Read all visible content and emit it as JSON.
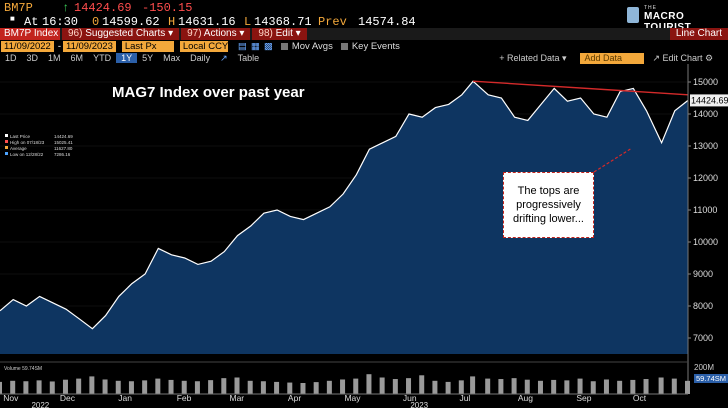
{
  "quote": {
    "ticker": "BM7P",
    "last": "14424.69",
    "change": "-150.15",
    "at_label": "At",
    "time": "16:30",
    "open_prefix": "0",
    "open": "14599.62",
    "high_prefix": "H",
    "high": "14631.16",
    "low_prefix": "L",
    "low": "14368.71",
    "prev_label": "Prev",
    "prev": "14574.84"
  },
  "logo": {
    "line1": "THE",
    "line2": "MACRO TOURIST"
  },
  "menu": {
    "ticker_label": "BM7P Index",
    "items": [
      {
        "num": "96)",
        "label": "Suggested Charts",
        "arrow": "▾"
      },
      {
        "num": "97)",
        "label": "Actions",
        "arrow": "▾"
      },
      {
        "num": "98)",
        "label": "Edit",
        "arrow": "▾"
      }
    ],
    "right": "Line Chart"
  },
  "controls": {
    "start_date": "11/09/2022",
    "dash": "-",
    "end_date": "11/09/2023",
    "field": "Last Px",
    "ccy": "Local CCY",
    "mov_avgs": "Mov Avgs",
    "key_events": "Key Events"
  },
  "periods": [
    "1D",
    "3D",
    "1M",
    "6M",
    "YTD",
    "1Y",
    "5Y",
    "Max"
  ],
  "selected_period": "1Y",
  "freq": "Daily",
  "table_label": "Table",
  "related_data": "+ Related Data ▾",
  "add_data_placeholder": "Add Data",
  "edit_chart": "↗ Edit Chart ⚙",
  "legend": {
    "rows": [
      {
        "label": "Last Price",
        "value": "14424.69",
        "color": "#ffffff"
      },
      {
        "label": "High on 07/18/23",
        "value": "15025.41",
        "color": "#ff4d4d"
      },
      {
        "label": "Average",
        "value": "11627.80",
        "color": "#f3a83b"
      },
      {
        "label": "Low on 12/28/22",
        "value": "7286.16",
        "color": "#4da3ff"
      }
    ]
  },
  "volume": {
    "label": "Volume",
    "value": "59.74SM",
    "scale_top": "200M",
    "scale_current": "59.74SM"
  },
  "annotation": {
    "title": "MAG7 Index over past year",
    "callout": "The tops are progressively drifting lower..."
  },
  "colors": {
    "area": "#0e3561",
    "bg": "#000000",
    "line": "#ffffff",
    "trend": "#d42a2a",
    "accent": "#f3a83b"
  },
  "chart_data": {
    "type": "area",
    "ylim": [
      6500,
      15500
    ],
    "yticks": [
      7000,
      8000,
      9000,
      10000,
      11000,
      12000,
      13000,
      14000,
      15000
    ],
    "ytick_labels": [
      "7000",
      "8000",
      "9000",
      "10000",
      "11000",
      "12000",
      "13000",
      "14000",
      "15000"
    ],
    "xtick_labels": [
      "Nov",
      "Dec",
      "Jan",
      "Feb",
      "Mar",
      "Apr",
      "May",
      "Jun",
      "Jul",
      "Aug",
      "Sep",
      "Oct"
    ],
    "year_labels": [
      "2022",
      "2023"
    ],
    "last_value_label": "14424.69",
    "x": [
      "2022-11-09",
      "2022-11-16",
      "2022-11-23",
      "2022-11-30",
      "2022-12-07",
      "2022-12-14",
      "2022-12-21",
      "2022-12-28",
      "2023-01-04",
      "2023-01-11",
      "2023-01-18",
      "2023-01-25",
      "2023-02-01",
      "2023-02-08",
      "2023-02-15",
      "2023-02-22",
      "2023-03-01",
      "2023-03-08",
      "2023-03-15",
      "2023-03-22",
      "2023-03-29",
      "2023-04-05",
      "2023-04-12",
      "2023-04-19",
      "2023-04-26",
      "2023-05-03",
      "2023-05-10",
      "2023-05-17",
      "2023-05-24",
      "2023-05-31",
      "2023-06-07",
      "2023-06-14",
      "2023-06-21",
      "2023-06-28",
      "2023-07-05",
      "2023-07-12",
      "2023-07-18",
      "2023-07-26",
      "2023-08-02",
      "2023-08-09",
      "2023-08-16",
      "2023-08-23",
      "2023-08-30",
      "2023-09-06",
      "2023-09-13",
      "2023-09-20",
      "2023-09-27",
      "2023-10-04",
      "2023-10-11",
      "2023-10-18",
      "2023-10-26",
      "2023-11-02",
      "2023-11-09"
    ],
    "values": [
      7850,
      8200,
      8000,
      8300,
      8100,
      7900,
      7600,
      7290,
      7700,
      8300,
      8700,
      9000,
      9800,
      9600,
      9500,
      9300,
      9400,
      9700,
      10200,
      10500,
      10900,
      11000,
      10800,
      10700,
      10900,
      11100,
      11500,
      12100,
      12900,
      13100,
      13300,
      14000,
      13900,
      14200,
      14300,
      14600,
      15025,
      14600,
      14500,
      13900,
      13800,
      14300,
      14800,
      14400,
      14500,
      14000,
      13900,
      14700,
      14800,
      14100,
      13100,
      14100,
      14424.69
    ],
    "trendline": {
      "x": [
        "2023-07-18",
        "2023-11-09"
      ],
      "y": [
        15025,
        14600
      ]
    },
    "volume_values": [
      55,
      60,
      58,
      62,
      57,
      65,
      70,
      80,
      66,
      60,
      58,
      62,
      70,
      64,
      60,
      58,
      63,
      72,
      75,
      60,
      58,
      55,
      52,
      50,
      54,
      60,
      66,
      70,
      90,
      75,
      68,
      72,
      85,
      60,
      55,
      62,
      80,
      70,
      68,
      72,
      65,
      60,
      64,
      62,
      70,
      58,
      66,
      60,
      64,
      68,
      75,
      70,
      59.74
    ]
  }
}
